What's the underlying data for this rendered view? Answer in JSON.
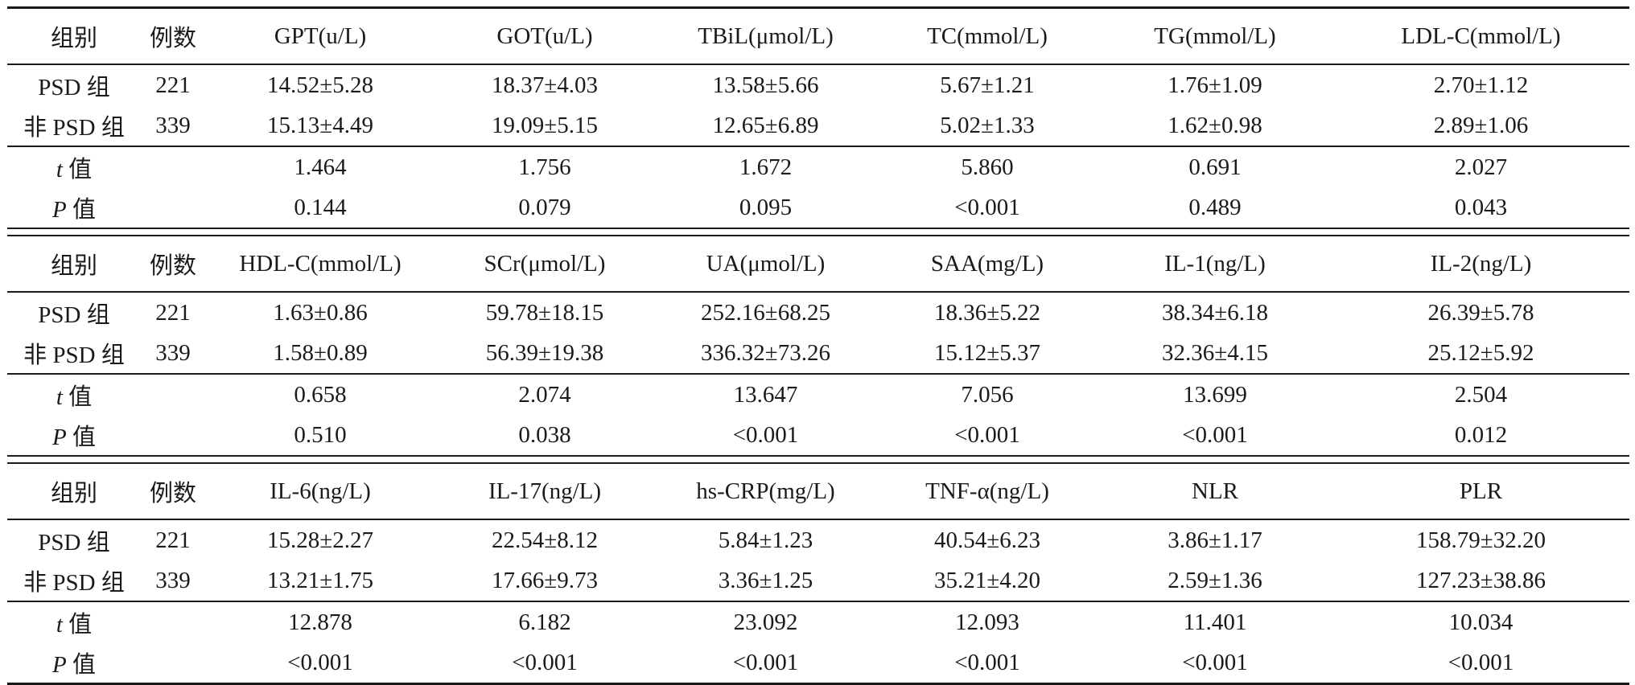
{
  "blocks": [
    {
      "header": [
        "组别",
        "例数",
        "GPT(u/L)",
        "GOT(u/L)",
        "TBiL(μmol/L)",
        "TC(mmol/L)",
        "TG(mmol/L)",
        "LDL-C(mmol/L)"
      ],
      "groups": [
        {
          "name": "PSD 组",
          "n": "221",
          "values": [
            "14.52±5.28",
            "18.37±4.03",
            "13.58±5.66",
            "5.67±1.21",
            "1.76±1.09",
            "2.70±1.12"
          ]
        },
        {
          "name": "非 PSD 组",
          "n": "339",
          "values": [
            "15.13±4.49",
            "19.09±5.15",
            "12.65±6.89",
            "5.02±1.33",
            "1.62±0.98",
            "2.89±1.06"
          ]
        }
      ],
      "t": [
        "1.464",
        "1.756",
        "1.672",
        "5.860",
        "0.691",
        "2.027"
      ],
      "p": [
        "0.144",
        "0.079",
        "0.095",
        "<0.001",
        "0.489",
        "0.043"
      ]
    },
    {
      "header": [
        "组别",
        "例数",
        "HDL-C(mmol/L)",
        "SCr(μmol/L)",
        "UA(μmol/L)",
        "SAA(mg/L)",
        "IL-1(ng/L)",
        "IL-2(ng/L)"
      ],
      "groups": [
        {
          "name": "PSD 组",
          "n": "221",
          "values": [
            "1.63±0.86",
            "59.78±18.15",
            "252.16±68.25",
            "18.36±5.22",
            "38.34±6.18",
            "26.39±5.78"
          ]
        },
        {
          "name": "非 PSD 组",
          "n": "339",
          "values": [
            "1.58±0.89",
            "56.39±19.38",
            "336.32±73.26",
            "15.12±5.37",
            "32.36±4.15",
            "25.12±5.92"
          ]
        }
      ],
      "t": [
        "0.658",
        "2.074",
        "13.647",
        "7.056",
        "13.699",
        "2.504"
      ],
      "p": [
        "0.510",
        "0.038",
        "<0.001",
        "<0.001",
        "<0.001",
        "0.012"
      ]
    },
    {
      "header": [
        "组别",
        "例数",
        "IL-6(ng/L)",
        "IL-17(ng/L)",
        "hs-CRP(mg/L)",
        "TNF-α(ng/L)",
        "NLR",
        "PLR"
      ],
      "groups": [
        {
          "name": "PSD 组",
          "n": "221",
          "values": [
            "15.28±2.27",
            "22.54±8.12",
            "5.84±1.23",
            "40.54±6.23",
            "3.86±1.17",
            "158.79±32.20"
          ]
        },
        {
          "name": "非 PSD 组",
          "n": "339",
          "values": [
            "13.21±1.75",
            "17.66±9.73",
            "3.36±1.25",
            "35.21±4.20",
            "2.59±1.36",
            "127.23±38.86"
          ]
        }
      ],
      "t": [
        "12.878",
        "6.182",
        "23.092",
        "12.093",
        "11.401",
        "10.034"
      ],
      "p": [
        "<0.001",
        "<0.001",
        "<0.001",
        "<0.001",
        "<0.001",
        "<0.001"
      ]
    }
  ],
  "stat_labels": {
    "t_symbol": "t",
    "p_symbol": "P",
    "value_suffix": " 值"
  }
}
